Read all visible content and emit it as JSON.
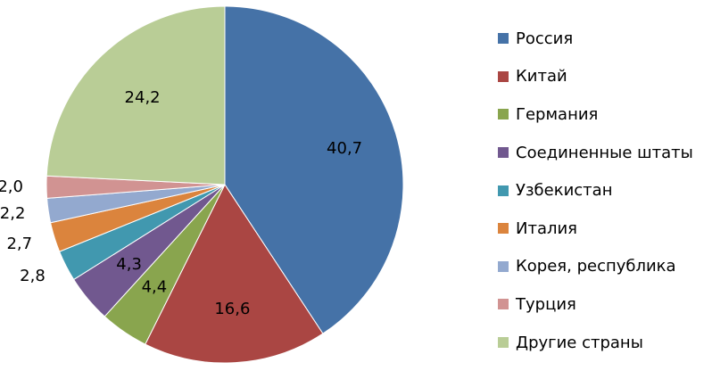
{
  "chart_data": {
    "type": "pie",
    "title": "",
    "legend_position": "right",
    "series": [
      {
        "name": "Россия",
        "value": 40.7,
        "label": "40,7",
        "color": "#4572A7"
      },
      {
        "name": "Китай",
        "value": 16.6,
        "label": "16,6",
        "color": "#AA4643"
      },
      {
        "name": "Германия",
        "value": 4.4,
        "label": "4,4",
        "color": "#89A54E"
      },
      {
        "name": "Соединенные штаты",
        "value": 4.3,
        "label": "4,3",
        "color": "#71588F"
      },
      {
        "name": "Узбекистан",
        "value": 2.8,
        "label": "2,8",
        "color": "#4198AF"
      },
      {
        "name": "Италия",
        "value": 2.7,
        "label": "2,7",
        "color": "#DB843D"
      },
      {
        "name": "Корея, республика",
        "value": 2.2,
        "label": "2,2",
        "color": "#93A9CF"
      },
      {
        "name": "Турция",
        "value": 2.0,
        "label": "2,0",
        "color": "#D19392"
      },
      {
        "name": "Другие страны",
        "value": 24.2,
        "label": "24,2",
        "color": "#B9CD96"
      }
    ]
  }
}
